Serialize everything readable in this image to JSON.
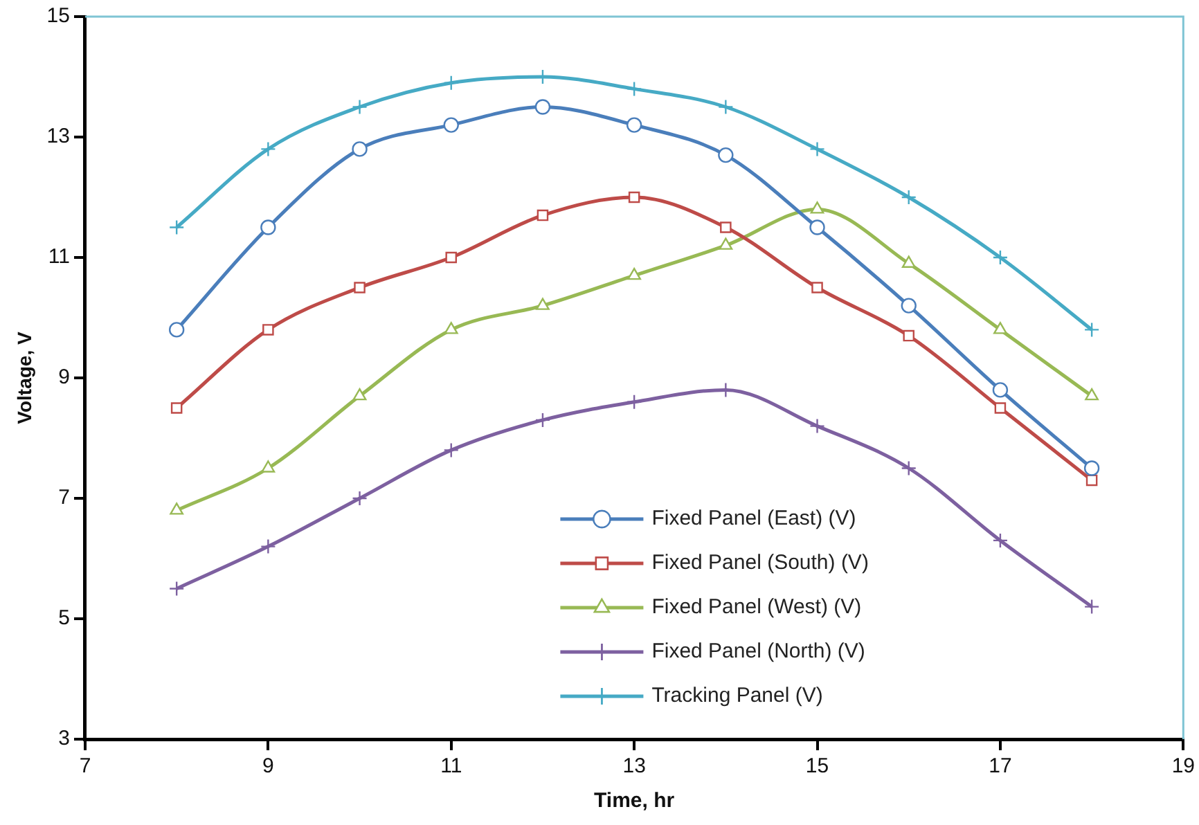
{
  "chart_data": {
    "type": "line",
    "xlabel": "Time, hr",
    "ylabel": "Voltage, V",
    "x": [
      8,
      9,
      10,
      11,
      12,
      13,
      14,
      15,
      16,
      17,
      18
    ],
    "xlim": [
      7,
      19
    ],
    "xticks": [
      7,
      9,
      11,
      13,
      15,
      17,
      19
    ],
    "ylim": [
      3,
      15
    ],
    "yticks": [
      3,
      5,
      7,
      9,
      11,
      13,
      15
    ],
    "grid": false,
    "legend": "bottom",
    "series": [
      {
        "name": "Fixed Panel (East) (V)",
        "color": "#4a7ebb",
        "marker": "circle",
        "values": [
          9.8,
          11.5,
          12.8,
          13.2,
          13.5,
          13.2,
          12.7,
          11.5,
          10.2,
          8.8,
          7.5
        ]
      },
      {
        "name": "Fixed Panel (South) (V)",
        "color": "#be4b48",
        "marker": "square",
        "values": [
          8.5,
          9.8,
          10.5,
          11.0,
          11.7,
          12.0,
          11.5,
          10.5,
          9.7,
          8.5,
          7.3
        ]
      },
      {
        "name": "Fixed Panel (West) (V)",
        "color": "#98b954",
        "marker": "triangle",
        "values": [
          6.8,
          7.5,
          8.7,
          9.8,
          10.2,
          10.7,
          11.2,
          11.8,
          10.9,
          9.8,
          8.7
        ]
      },
      {
        "name": "Fixed Panel (North) (V)",
        "color": "#7d60a0",
        "marker": "cross",
        "values": [
          5.5,
          6.2,
          7.0,
          7.8,
          8.3,
          8.6,
          8.8,
          8.2,
          7.5,
          6.3,
          5.2
        ]
      },
      {
        "name": "Tracking Panel (V)",
        "color": "#46aac5",
        "marker": "cross",
        "values": [
          11.5,
          12.8,
          13.5,
          13.9,
          14.0,
          13.8,
          13.5,
          12.8,
          12.0,
          11.0,
          9.8
        ]
      }
    ]
  }
}
